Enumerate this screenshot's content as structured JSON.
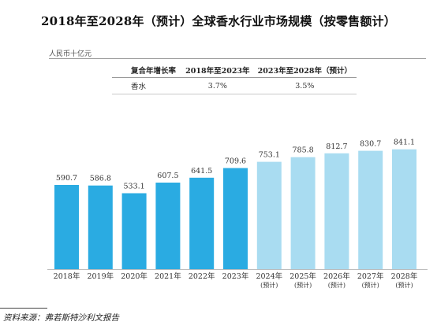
{
  "chart_data": {
    "type": "bar",
    "title": "2018年至2028年（预计）全球香水行业市场规模（按零售额计）",
    "ylabel": "人民币十亿元",
    "xlabel": "",
    "ylim": [
      0,
      900
    ],
    "grid": false,
    "legend": "none",
    "categories": [
      "2018年",
      "2019年",
      "2020年",
      "2021年",
      "2022年",
      "2023年",
      "2024年\n(预计)",
      "2025年\n(预计)",
      "2026年\n(预计)",
      "2027年\n(预计)",
      "2028年\n(预计)"
    ],
    "values": [
      590.7,
      586.8,
      533.1,
      607.5,
      641.5,
      709.6,
      753.1,
      785.8,
      812.7,
      830.7,
      841.1
    ],
    "value_labels": [
      "590.7",
      "586.8",
      "533.1",
      "607.5",
      "641.5",
      "709.6",
      "753.1",
      "785.8",
      "812.7",
      "830.7",
      "841.1"
    ],
    "forecast": [
      false,
      false,
      false,
      false,
      false,
      false,
      true,
      true,
      true,
      true,
      true
    ],
    "colors": {
      "actual": "#2aabe2",
      "forecast": "#a9dcf1"
    }
  },
  "cagr_table": {
    "headers": [
      "复合年增长率",
      "2018年至2023年",
      "2023年至2028年（预计）"
    ],
    "rows": [
      {
        "label": "香水",
        "values": [
          "3.7%",
          "3.5%"
        ]
      }
    ]
  },
  "source": "资料来源：弗若斯特沙利文报告"
}
